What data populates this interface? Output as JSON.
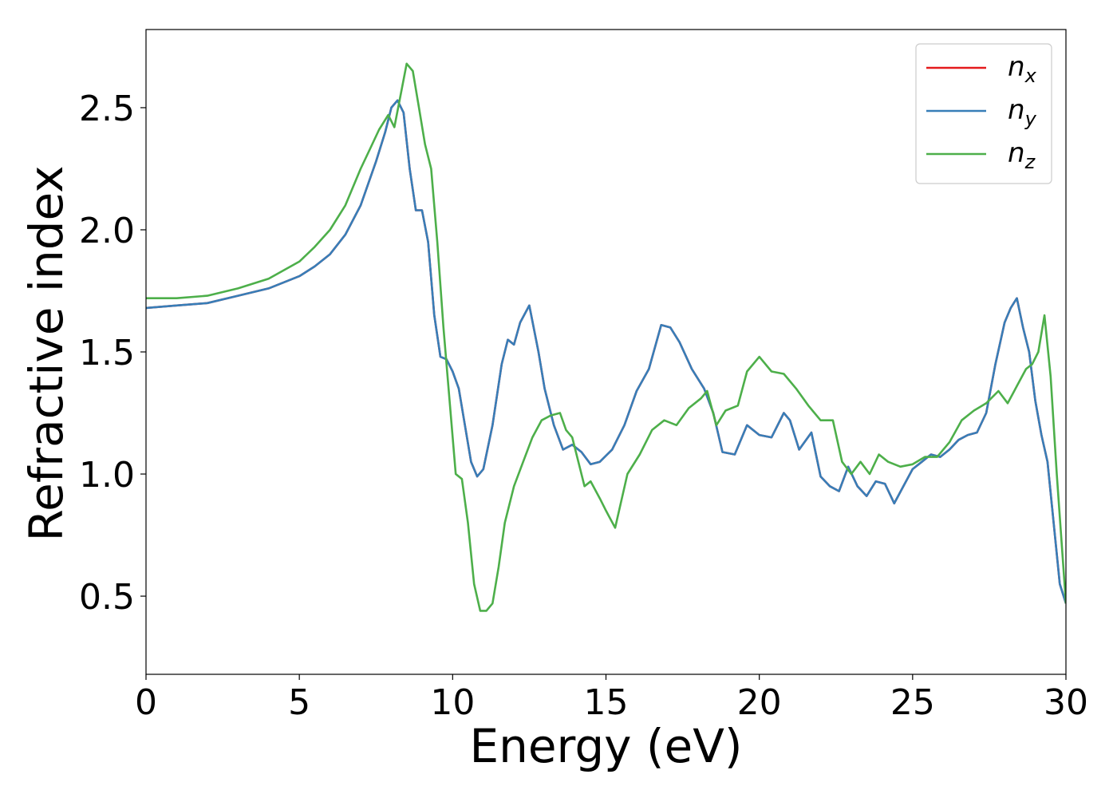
{
  "chart_data": {
    "type": "line",
    "xlabel": "Energy (eV)",
    "ylabel": "Refractive index",
    "xlim": [
      0,
      30
    ],
    "ylim": [
      0.18,
      2.82
    ],
    "xticks": [
      0,
      5,
      10,
      15,
      20,
      25,
      30
    ],
    "xtick_labels": [
      "0",
      "5",
      "10",
      "15",
      "20",
      "25",
      "30"
    ],
    "yticks": [
      0.5,
      1.0,
      1.5,
      2.0,
      2.5
    ],
    "ytick_labels": [
      "0.5",
      "1.0",
      "1.5",
      "2.0",
      "2.5"
    ],
    "grid": false,
    "legend_position": "top-right",
    "series": [
      {
        "name": "n",
        "subscript": "x",
        "color": "#e41a1c",
        "x": [
          0,
          1,
          2,
          3,
          4,
          5,
          5.5,
          6,
          6.5,
          7,
          7.5,
          7.8,
          8.0,
          8.2,
          8.4,
          8.6,
          8.8,
          9.0,
          9.2,
          9.4,
          9.6,
          9.8,
          10.0,
          10.2,
          10.4,
          10.6,
          10.8,
          11.0,
          11.3,
          11.6,
          11.8,
          12.0,
          12.2,
          12.5,
          12.8,
          13.0,
          13.3,
          13.6,
          13.9,
          14.2,
          14.5,
          14.8,
          15.2,
          15.6,
          16.0,
          16.4,
          16.8,
          17.1,
          17.4,
          17.8,
          18.2,
          18.5,
          18.8,
          19.2,
          19.6,
          20.0,
          20.4,
          20.8,
          21.0,
          21.3,
          21.7,
          22.0,
          22.3,
          22.6,
          22.9,
          23.2,
          23.5,
          23.8,
          24.1,
          24.4,
          24.7,
          25.0,
          25.3,
          25.6,
          25.9,
          26.2,
          26.5,
          26.8,
          27.1,
          27.4,
          27.7,
          28.0,
          28.2,
          28.4,
          28.6,
          28.8,
          29.0,
          29.2,
          29.4,
          29.6,
          29.8,
          30.0
        ],
        "y": [
          1.68,
          1.69,
          1.7,
          1.73,
          1.76,
          1.81,
          1.85,
          1.9,
          1.98,
          2.1,
          2.28,
          2.4,
          2.5,
          2.53,
          2.48,
          2.25,
          2.08,
          2.08,
          1.95,
          1.65,
          1.48,
          1.47,
          1.42,
          1.35,
          1.2,
          1.05,
          0.99,
          1.02,
          1.2,
          1.45,
          1.55,
          1.53,
          1.62,
          1.69,
          1.5,
          1.35,
          1.2,
          1.1,
          1.12,
          1.09,
          1.04,
          1.05,
          1.1,
          1.2,
          1.34,
          1.43,
          1.61,
          1.6,
          1.54,
          1.43,
          1.35,
          1.25,
          1.09,
          1.08,
          1.2,
          1.16,
          1.15,
          1.25,
          1.22,
          1.1,
          1.17,
          0.99,
          0.95,
          0.93,
          1.03,
          0.95,
          0.91,
          0.97,
          0.96,
          0.88,
          0.95,
          1.02,
          1.05,
          1.08,
          1.07,
          1.1,
          1.14,
          1.16,
          1.17,
          1.25,
          1.45,
          1.62,
          1.68,
          1.72,
          1.6,
          1.5,
          1.3,
          1.16,
          1.05,
          0.8,
          0.55,
          0.47
        ]
      },
      {
        "name": "n",
        "subscript": "y",
        "color": "#377eb8",
        "x": [
          0,
          1,
          2,
          3,
          4,
          5,
          5.5,
          6,
          6.5,
          7,
          7.5,
          7.8,
          8.0,
          8.2,
          8.4,
          8.6,
          8.8,
          9.0,
          9.2,
          9.4,
          9.6,
          9.8,
          10.0,
          10.2,
          10.4,
          10.6,
          10.8,
          11.0,
          11.3,
          11.6,
          11.8,
          12.0,
          12.2,
          12.5,
          12.8,
          13.0,
          13.3,
          13.6,
          13.9,
          14.2,
          14.5,
          14.8,
          15.2,
          15.6,
          16.0,
          16.4,
          16.8,
          17.1,
          17.4,
          17.8,
          18.2,
          18.5,
          18.8,
          19.2,
          19.6,
          20.0,
          20.4,
          20.8,
          21.0,
          21.3,
          21.7,
          22.0,
          22.3,
          22.6,
          22.9,
          23.2,
          23.5,
          23.8,
          24.1,
          24.4,
          24.7,
          25.0,
          25.3,
          25.6,
          25.9,
          26.2,
          26.5,
          26.8,
          27.1,
          27.4,
          27.7,
          28.0,
          28.2,
          28.4,
          28.6,
          28.8,
          29.0,
          29.2,
          29.4,
          29.6,
          29.8,
          30.0
        ],
        "y": [
          1.68,
          1.69,
          1.7,
          1.73,
          1.76,
          1.81,
          1.85,
          1.9,
          1.98,
          2.1,
          2.28,
          2.4,
          2.5,
          2.53,
          2.48,
          2.25,
          2.08,
          2.08,
          1.95,
          1.65,
          1.48,
          1.47,
          1.42,
          1.35,
          1.2,
          1.05,
          0.99,
          1.02,
          1.2,
          1.45,
          1.55,
          1.53,
          1.62,
          1.69,
          1.5,
          1.35,
          1.2,
          1.1,
          1.12,
          1.09,
          1.04,
          1.05,
          1.1,
          1.2,
          1.34,
          1.43,
          1.61,
          1.6,
          1.54,
          1.43,
          1.35,
          1.25,
          1.09,
          1.08,
          1.2,
          1.16,
          1.15,
          1.25,
          1.22,
          1.1,
          1.17,
          0.99,
          0.95,
          0.93,
          1.03,
          0.95,
          0.91,
          0.97,
          0.96,
          0.88,
          0.95,
          1.02,
          1.05,
          1.08,
          1.07,
          1.1,
          1.14,
          1.16,
          1.17,
          1.25,
          1.45,
          1.62,
          1.68,
          1.72,
          1.6,
          1.5,
          1.3,
          1.16,
          1.05,
          0.8,
          0.55,
          0.47
        ]
      },
      {
        "name": "n",
        "subscript": "z",
        "color": "#4daf4a",
        "x": [
          0,
          1,
          2,
          3,
          4,
          5,
          5.5,
          6,
          6.5,
          7,
          7.3,
          7.6,
          7.9,
          8.1,
          8.3,
          8.5,
          8.7,
          8.9,
          9.1,
          9.3,
          9.5,
          9.7,
          9.9,
          10.1,
          10.3,
          10.5,
          10.7,
          10.9,
          11.1,
          11.3,
          11.5,
          11.7,
          12.0,
          12.3,
          12.6,
          12.9,
          13.2,
          13.5,
          13.7,
          13.9,
          14.1,
          14.3,
          14.5,
          14.8,
          15.0,
          15.3,
          15.7,
          16.1,
          16.5,
          16.9,
          17.3,
          17.7,
          18.1,
          18.3,
          18.6,
          18.9,
          19.3,
          19.6,
          20.0,
          20.4,
          20.8,
          21.2,
          21.6,
          22.0,
          22.4,
          22.7,
          23.0,
          23.3,
          23.6,
          23.9,
          24.2,
          24.6,
          25.0,
          25.4,
          25.8,
          26.2,
          26.6,
          27.0,
          27.4,
          27.8,
          28.1,
          28.4,
          28.7,
          28.9,
          29.1,
          29.3,
          29.5,
          29.7,
          30.0
        ],
        "y": [
          1.72,
          1.72,
          1.73,
          1.76,
          1.8,
          1.87,
          1.93,
          2.0,
          2.1,
          2.25,
          2.33,
          2.41,
          2.47,
          2.42,
          2.55,
          2.68,
          2.65,
          2.5,
          2.35,
          2.25,
          1.95,
          1.6,
          1.3,
          1.0,
          0.98,
          0.8,
          0.55,
          0.44,
          0.44,
          0.47,
          0.62,
          0.8,
          0.95,
          1.05,
          1.15,
          1.22,
          1.24,
          1.25,
          1.18,
          1.15,
          1.05,
          0.95,
          0.97,
          0.9,
          0.85,
          0.78,
          1.0,
          1.08,
          1.18,
          1.22,
          1.2,
          1.27,
          1.31,
          1.34,
          1.2,
          1.26,
          1.28,
          1.42,
          1.48,
          1.42,
          1.41,
          1.35,
          1.28,
          1.22,
          1.22,
          1.05,
          1.0,
          1.05,
          1.0,
          1.08,
          1.05,
          1.03,
          1.04,
          1.07,
          1.07,
          1.13,
          1.22,
          1.26,
          1.29,
          1.34,
          1.29,
          1.36,
          1.43,
          1.45,
          1.5,
          1.65,
          1.4,
          1.0,
          0.47
        ]
      }
    ]
  }
}
